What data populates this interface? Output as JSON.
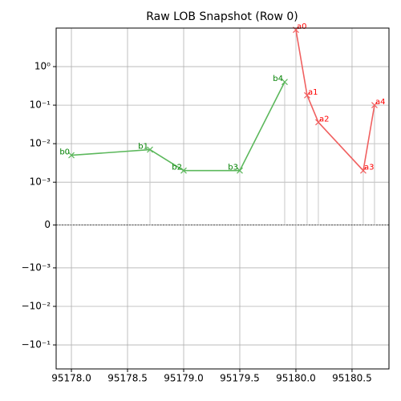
{
  "chart_data": {
    "type": "line",
    "title": "Raw LOB Snapshot (Row 0)",
    "yscale": "symlog",
    "linthresh": 0.001,
    "linscale": 1,
    "grid": true,
    "xlim": [
      95177.864,
      95180.829
    ],
    "ylim": [
      -0.42,
      10
    ],
    "xticks": [
      {
        "value": 95178.0,
        "label": "95178.0"
      },
      {
        "value": 95178.5,
        "label": "95178.5"
      },
      {
        "value": 95179.0,
        "label": "95179.0"
      },
      {
        "value": 95179.5,
        "label": "95179.5"
      },
      {
        "value": 95180.0,
        "label": "95180.0"
      },
      {
        "value": 95180.5,
        "label": "95180.5"
      }
    ],
    "yticks": [
      {
        "value": -0.1,
        "label": "−10⁻¹"
      },
      {
        "value": -0.01,
        "label": "−10⁻²"
      },
      {
        "value": -0.001,
        "label": "−10⁻³"
      },
      0,
      {
        "value": 0.001,
        "label": "10⁻³"
      },
      {
        "value": 0.01,
        "label": "10⁻²"
      },
      {
        "value": 0.1,
        "label": "10⁻¹"
      },
      {
        "value": 1,
        "label": "10⁰"
      }
    ],
    "series": [
      {
        "color": "#5cb85c",
        "label_color": "#008000",
        "label_side": "left",
        "x": [
          95178.0,
          95178.7,
          95179.0,
          95179.5,
          95179.9
        ],
        "values": [
          0.005,
          0.007,
          0.002,
          0.002,
          0.4
        ],
        "labels": [
          "b0",
          "b1",
          "b2",
          "b3",
          "b4"
        ]
      },
      {
        "color": "#f06060",
        "label_color": "#ff0000",
        "label_side": "right",
        "x": [
          95180.0,
          95180.1,
          95180.2,
          95180.6,
          95180.7
        ],
        "values": [
          9,
          0.18,
          0.036,
          0.002,
          0.1
        ],
        "labels": [
          "a0",
          "a1",
          "a2",
          "a3",
          "a4"
        ]
      }
    ]
  }
}
